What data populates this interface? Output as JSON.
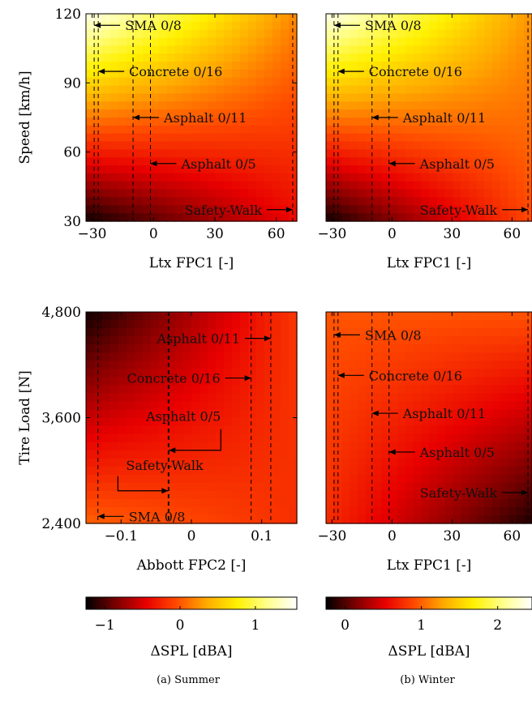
{
  "captions": {
    "left": "(a) Summer",
    "right": "(b) Winter"
  },
  "colorbars": [
    {
      "label": "ΔSPL [dBA]",
      "range": [
        -1.25,
        1.55
      ],
      "ticks": [
        {
          "v": -1,
          "t": "−1"
        },
        {
          "v": 0,
          "t": "0"
        },
        {
          "v": 1,
          "t": "1"
        }
      ]
    },
    {
      "label": "ΔSPL [dBA]",
      "range": [
        -0.25,
        2.45
      ],
      "ticks": [
        {
          "v": 0,
          "t": "0"
        },
        {
          "v": 1,
          "t": "1"
        },
        {
          "v": 2,
          "t": "2"
        }
      ]
    }
  ],
  "chart_data": [
    {
      "type": "heatmap",
      "name": "summer-speed",
      "xlabel": "Ltx FPC1 [-]",
      "ylabel": "Speed [km/h]",
      "xlim": [
        -33,
        70
      ],
      "ylim": [
        30,
        120
      ],
      "xticks": [
        {
          "v": -30,
          "t": "−30"
        },
        {
          "v": 0,
          "t": "0"
        },
        {
          "v": 30,
          "t": "30"
        },
        {
          "v": 60,
          "t": "60"
        }
      ],
      "yticks": [
        {
          "v": 30,
          "t": "30"
        },
        {
          "v": 60,
          "t": "60"
        },
        {
          "v": 90,
          "t": "90"
        },
        {
          "v": 120,
          "t": "120"
        }
      ],
      "colorbar_ref": 0,
      "surface": {
        "corners": {
          "bottom_left": -1.2,
          "bottom_right": -0.4,
          "top_left": 1.5,
          "top_right": 0.2
        }
      },
      "annotations": [
        {
          "label": "SMA 0/8",
          "x": -29,
          "y": 115,
          "dir": "left"
        },
        {
          "label": "Concrete 0/16",
          "x": -27,
          "y": 95,
          "dir": "left"
        },
        {
          "label": "Asphalt 0/11",
          "x": -10,
          "y": 75,
          "dir": "left"
        },
        {
          "label": "Asphalt 0/5",
          "x": -1.5,
          "y": 55,
          "dir": "left"
        },
        {
          "label": "Safety-Walk",
          "x": 68,
          "y": 35,
          "dir": "right"
        }
      ]
    },
    {
      "type": "heatmap",
      "name": "winter-speed",
      "xlabel": "Ltx FPC1 [-]",
      "ylabel": "",
      "xlim": [
        -33,
        70
      ],
      "ylim": [
        30,
        120
      ],
      "xticks": [
        {
          "v": -30,
          "t": "−30"
        },
        {
          "v": 0,
          "t": "0"
        },
        {
          "v": 30,
          "t": "30"
        },
        {
          "v": 60,
          "t": "60"
        }
      ],
      "yticks": [],
      "colorbar_ref": 1,
      "surface": {
        "corners": {
          "bottom_left": -0.2,
          "bottom_right": 0.9,
          "top_left": 2.4,
          "top_right": 1.2
        }
      },
      "annotations": [
        {
          "label": "SMA 0/8",
          "x": -29,
          "y": 115,
          "dir": "left"
        },
        {
          "label": "Concrete 0/16",
          "x": -27,
          "y": 95,
          "dir": "left"
        },
        {
          "label": "Asphalt 0/11",
          "x": -10,
          "y": 75,
          "dir": "left"
        },
        {
          "label": "Asphalt 0/5",
          "x": -1.5,
          "y": 55,
          "dir": "left"
        },
        {
          "label": "Safety-Walk",
          "x": 68,
          "y": 35,
          "dir": "right"
        }
      ]
    },
    {
      "type": "heatmap",
      "name": "summer-load",
      "xlabel": "Abbott FPC2 [-]",
      "ylabel": "Tire Load [N]",
      "xlim": [
        -0.15,
        0.15
      ],
      "ylim": [
        2400,
        4800
      ],
      "xticks": [
        {
          "v": -0.1,
          "t": "−0.1"
        },
        {
          "v": 0,
          "t": "0"
        },
        {
          "v": 0.1,
          "t": "0.1"
        }
      ],
      "yticks": [
        {
          "v": 2400,
          "t": "2,400"
        },
        {
          "v": 3600,
          "t": "3,600"
        },
        {
          "v": 4800,
          "t": "4,800"
        }
      ],
      "colorbar_ref": 0,
      "surface": {
        "corners": {
          "bottom_left": 0.05,
          "bottom_right": -0.2,
          "top_left": -1.2,
          "top_right": -0.15
        }
      },
      "annotations": [
        {
          "label": "Asphalt 0/11",
          "x": 0.113,
          "y": 4500,
          "dir": "right"
        },
        {
          "label": "Concrete 0/16",
          "x": 0.085,
          "y": 4050,
          "dir": "right"
        },
        {
          "label": "Asphalt 0/5",
          "x": -0.032,
          "y": 3230,
          "dir": "bracket-left"
        },
        {
          "label": "Safety-Walk",
          "x": -0.033,
          "y": 2770,
          "dir": "bracket-right"
        },
        {
          "label": "SMA 0/8",
          "x": -0.133,
          "y": 2480,
          "dir": "left"
        }
      ]
    },
    {
      "type": "heatmap",
      "name": "winter-load",
      "xlabel": "Ltx FPC1 [-]",
      "ylabel": "",
      "xlim": [
        -33,
        70
      ],
      "ylim": [
        2400,
        4800
      ],
      "xticks": [
        {
          "v": -30,
          "t": "−30"
        },
        {
          "v": 0,
          "t": "0"
        },
        {
          "v": 30,
          "t": "30"
        },
        {
          "v": 60,
          "t": "60"
        }
      ],
      "yticks": [],
      "colorbar_ref": 1,
      "surface": {
        "corners": {
          "bottom_left": 0.75,
          "bottom_right": -0.15,
          "top_left": 0.95,
          "top_right": 0.95
        }
      },
      "annotations": [
        {
          "label": "SMA 0/8",
          "x": -29,
          "y": 4540,
          "dir": "left"
        },
        {
          "label": "Concrete 0/16",
          "x": -27,
          "y": 4080,
          "dir": "left"
        },
        {
          "label": "Asphalt 0/11",
          "x": -10,
          "y": 3650,
          "dir": "left"
        },
        {
          "label": "Asphalt 0/5",
          "x": -1.5,
          "y": 3210,
          "dir": "left"
        },
        {
          "label": "Safety-Walk",
          "x": 68,
          "y": 2750,
          "dir": "right"
        }
      ]
    }
  ]
}
